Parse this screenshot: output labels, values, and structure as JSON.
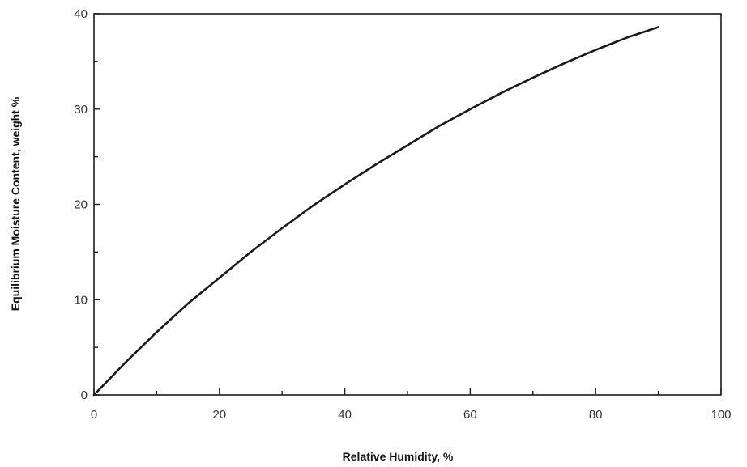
{
  "chart_data": {
    "type": "line",
    "title": "",
    "xlabel": "Relative Humidity, %",
    "ylabel": "Equilibrium Moisture Content, weight %",
    "xlim": [
      0,
      100
    ],
    "ylim": [
      0,
      40
    ],
    "x_ticks": [
      0,
      20,
      40,
      60,
      80,
      100
    ],
    "y_ticks": [
      0,
      10,
      20,
      30,
      40
    ],
    "x_tick_labels": [
      "0",
      "20",
      "40",
      "60",
      "80",
      "100"
    ],
    "y_tick_labels": [
      "0",
      "10",
      "20",
      "30",
      "40"
    ],
    "grid": false,
    "legend": "none",
    "line_color": "#1a1a1a",
    "series": [
      {
        "x": [
          0,
          5,
          10,
          15,
          20,
          25,
          30,
          35,
          40,
          45,
          50,
          55,
          60,
          65,
          70,
          75,
          80,
          85,
          90
        ],
        "y": [
          0,
          3.4,
          6.6,
          9.6,
          12.3,
          15.0,
          17.5,
          19.9,
          22.1,
          24.2,
          26.2,
          28.2,
          30.0,
          31.7,
          33.3,
          34.8,
          36.2,
          37.5,
          38.6
        ]
      }
    ]
  }
}
